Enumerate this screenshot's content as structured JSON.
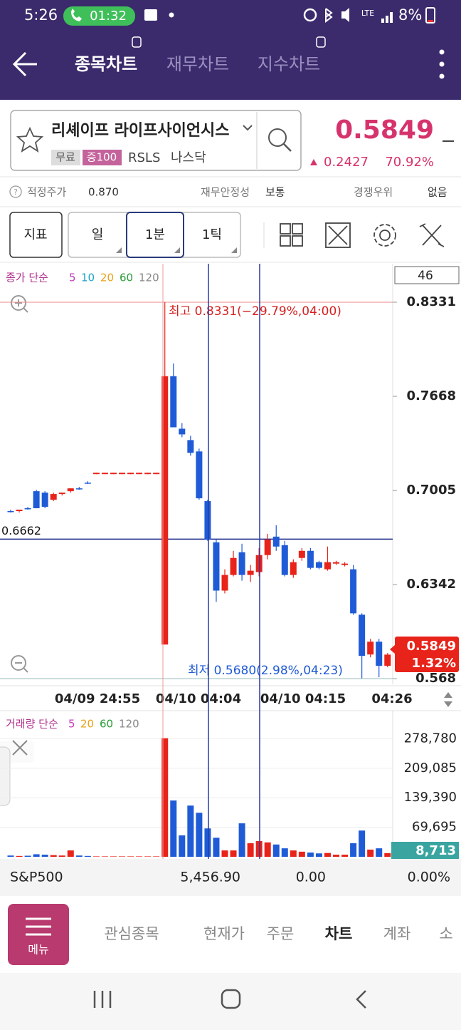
{
  "status_bar": {
    "time": "5:26",
    "call_timer": "01:32",
    "battery": "8%"
  },
  "header": {
    "tabs": [
      "종목차트",
      "재무차트",
      "지수차트"
    ]
  },
  "stock": {
    "name": "리셰이프 라이프사이언시스",
    "tags": [
      "무료",
      "증100"
    ],
    "ticker": "RSLS",
    "market": "나스닥",
    "price": "0.5849",
    "change": "0.2427",
    "change_pct": "70.92%"
  },
  "info": {
    "fair_price_label": "적정주가",
    "fair_price": "0.870",
    "stability_label": "재무안정성",
    "stability": "보통",
    "advantage_label": "경쟁우위",
    "advantage": "없음"
  },
  "toolbar": {
    "buttons": [
      "지표",
      "일",
      "1분",
      "1틱"
    ]
  },
  "price_chart": {
    "legend_label": "종가 단순",
    "ma": [
      {
        "name": "5",
        "color": "#c23bb8"
      },
      {
        "name": "10",
        "color": "#1ba3c6"
      },
      {
        "name": "20",
        "color": "#e8a317"
      },
      {
        "name": "60",
        "color": "#2a9d3a"
      },
      {
        "name": "120",
        "color": "#888888"
      }
    ],
    "count": "46",
    "high_label": "최고 0.8331(−29.79%,04:00)",
    "low_label": "최저 0.5680(2.98%,04:23)",
    "crosshair_price": 0.6662,
    "current_price": "0.5849",
    "current_pct": "1.32%",
    "ylim": [
      0.564,
      0.8602
    ],
    "yticks": [
      0.8331,
      0.7668,
      0.7005,
      0.6342,
      0.568
    ],
    "up_color": "#e8231a",
    "down_color": "#1f5bd6",
    "candles": [
      [
        0.686,
        0.687,
        0.685,
        0.686
      ],
      [
        0.686,
        0.687,
        0.685,
        0.687
      ],
      [
        0.688,
        0.689,
        0.687,
        0.688
      ],
      [
        0.7,
        0.701,
        0.688,
        0.688
      ],
      [
        0.699,
        0.7,
        0.688,
        0.689
      ],
      [
        0.694,
        0.699,
        0.693,
        0.698
      ],
      [
        0.698,
        0.699,
        0.697,
        0.699
      ],
      [
        0.7,
        0.702,
        0.699,
        0.702
      ],
      [
        0.702,
        0.703,
        0.701,
        0.702
      ],
      [
        0.706,
        0.707,
        0.705,
        0.706
      ],
      [
        0.712,
        0.713,
        0.712,
        0.713
      ],
      [
        0.712,
        0.713,
        0.712,
        0.713
      ],
      [
        0.712,
        0.713,
        0.712,
        0.713
      ],
      [
        0.712,
        0.713,
        0.712,
        0.713
      ],
      [
        0.712,
        0.713,
        0.712,
        0.713
      ],
      [
        0.712,
        0.713,
        0.712,
        0.713
      ],
      [
        0.712,
        0.713,
        0.712,
        0.713
      ],
      [
        0.712,
        0.713,
        0.712,
        0.713
      ],
      [
        0.592,
        0.8331,
        0.592,
        0.781
      ],
      [
        0.781,
        0.79,
        0.745,
        0.745
      ],
      [
        0.744,
        0.748,
        0.738,
        0.74
      ],
      [
        0.736,
        0.739,
        0.725,
        0.727
      ],
      [
        0.728,
        0.73,
        0.694,
        0.695
      ],
      [
        0.693,
        0.694,
        0.665,
        0.666
      ],
      [
        0.664,
        0.666,
        0.622,
        0.63
      ],
      [
        0.63,
        0.645,
        0.628,
        0.641
      ],
      [
        0.641,
        0.658,
        0.64,
        0.653
      ],
      [
        0.657,
        0.663,
        0.637,
        0.641
      ],
      [
        0.641,
        0.648,
        0.636,
        0.644
      ],
      [
        0.643,
        0.66,
        0.64,
        0.655
      ],
      [
        0.655,
        0.67,
        0.652,
        0.666
      ],
      [
        0.668,
        0.676,
        0.658,
        0.661
      ],
      [
        0.662,
        0.665,
        0.64,
        0.641
      ],
      [
        0.641,
        0.652,
        0.639,
        0.65
      ],
      [
        0.653,
        0.66,
        0.651,
        0.658
      ],
      [
        0.658,
        0.66,
        0.645,
        0.646
      ],
      [
        0.65,
        0.651,
        0.645,
        0.646
      ],
      [
        0.645,
        0.661,
        0.644,
        0.65
      ],
      [
        0.649,
        0.651,
        0.648,
        0.65
      ],
      [
        0.648,
        0.65,
        0.647,
        0.649
      ],
      [
        0.645,
        0.648,
        0.613,
        0.614
      ],
      [
        0.613,
        0.614,
        0.568,
        0.584
      ],
      [
        0.585,
        0.596,
        0.583,
        0.594
      ],
      [
        0.594,
        0.596,
        0.569,
        0.577
      ],
      [
        0.577,
        0.586,
        0.576,
        0.5849
      ]
    ],
    "x_labels": [
      "04/09 24:55",
      "04/10 04:04",
      "04/10 04:15",
      "04:26"
    ]
  },
  "volume_chart": {
    "legend_label": "거래량 단순",
    "ma": [
      {
        "name": "5",
        "color": "#c23bb8"
      },
      {
        "name": "20",
        "color": "#e8a317"
      },
      {
        "name": "60",
        "color": "#2a9d3a"
      },
      {
        "name": "120",
        "color": "#888888"
      }
    ],
    "ylim": [
      0,
      340000
    ],
    "yticks": [
      {
        "value": 278780,
        "label": "278,780"
      },
      {
        "value": 209085,
        "label": "209,085"
      },
      {
        "value": 139390,
        "label": "139,390"
      },
      {
        "value": 69695,
        "label": "69,695"
      }
    ],
    "current": "8,713",
    "values": [
      3000,
      2000,
      2500,
      6000,
      5000,
      4000,
      3000,
      15000,
      3000,
      2000,
      1000,
      1000,
      1000,
      1000,
      1000,
      1000,
      1000,
      1000,
      280000,
      133000,
      50600,
      121000,
      104000,
      67000,
      45000,
      15000,
      15000,
      79000,
      32000,
      37000,
      34000,
      29000,
      20000,
      15000,
      12000,
      10000,
      8000,
      9000,
      5000,
      5000,
      32000,
      62000,
      17000,
      20000,
      8713
    ]
  },
  "index_bar": {
    "name": "S&P500",
    "value": "5,456.90",
    "change": "0.00",
    "change_pct": "0.00%"
  },
  "bottom_nav": {
    "menu": "메뉴",
    "items": [
      "관심종목",
      "현재가",
      "주문",
      "차트",
      "계좌",
      "소"
    ]
  }
}
